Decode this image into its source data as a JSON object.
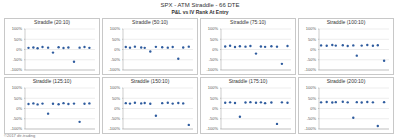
{
  "title": "SPX - ATM Straddle - 66 DTE",
  "subtitle": "P&L vs IV Rank At Entry",
  "footer": "©2017 dtr-trading",
  "chart_data": [
    {
      "type": "scatter",
      "title": "Straddle (20:10)",
      "x": [
        5,
        12,
        18,
        25,
        33,
        40,
        48,
        55,
        62,
        70,
        78,
        85,
        92
      ],
      "values": [
        8,
        10,
        6,
        12,
        9,
        -15,
        11,
        7,
        10,
        -60,
        9,
        12,
        8
      ],
      "xlim": [
        0,
        100
      ],
      "xticks": [
        0,
        25,
        50,
        75,
        100
      ],
      "ylim": [
        -100,
        100
      ],
      "yticks": [
        {
          "value": -100,
          "label": "-100%"
        },
        {
          "value": -50,
          "label": "-50%"
        },
        {
          "value": 0,
          "label": "0%"
        },
        {
          "value": 50,
          "label": "50%"
        },
        {
          "value": 100,
          "label": "100%"
        }
      ],
      "grid": true,
      "color": "#2f5c9e",
      "marker": "circle",
      "tick_labels": "y"
    },
    {
      "type": "scatter",
      "title": "Straddle (50:10)",
      "x": [
        4,
        10,
        17,
        26,
        31,
        39,
        47,
        56,
        64,
        71,
        79,
        86,
        94
      ],
      "values": [
        12,
        9,
        14,
        10,
        8,
        -10,
        13,
        11,
        9,
        12,
        -45,
        10,
        14
      ],
      "xlim": [
        0,
        100
      ],
      "xticks": [
        0,
        25,
        50,
        75,
        100
      ],
      "ylim": [
        -100,
        100
      ],
      "yticks": [
        {
          "value": -100,
          "label": "-100%"
        },
        {
          "value": -50,
          "label": "-50%"
        },
        {
          "value": 0,
          "label": "0%"
        },
        {
          "value": 50,
          "label": "50%"
        },
        {
          "value": 100,
          "label": "100%"
        }
      ],
      "grid": true,
      "color": "#2f5c9e",
      "marker": "circle",
      "tick_labels": "y"
    },
    {
      "type": "scatter",
      "title": "Straddle (75:10)",
      "x": [
        6,
        13,
        20,
        27,
        35,
        42,
        50,
        57,
        63,
        72,
        80,
        87,
        95
      ],
      "values": [
        15,
        18,
        12,
        16,
        14,
        17,
        -20,
        15,
        13,
        16,
        14,
        -70,
        17
      ],
      "xlim": [
        0,
        100
      ],
      "xticks": [
        0,
        25,
        50,
        75,
        100
      ],
      "ylim": [
        -100,
        100
      ],
      "yticks": [
        {
          "value": -100,
          "label": "-100%"
        },
        {
          "value": -50,
          "label": "-50%"
        },
        {
          "value": 0,
          "label": "0%"
        },
        {
          "value": 50,
          "label": "50%"
        },
        {
          "value": 100,
          "label": "100%"
        }
      ],
      "grid": true,
      "color": "#2f5c9e",
      "marker": "circle",
      "tick_labels": "y"
    },
    {
      "type": "scatter",
      "title": "Straddle (100:10)",
      "x": [
        3,
        11,
        19,
        24,
        34,
        41,
        49,
        54,
        61,
        69,
        77,
        84,
        93
      ],
      "values": [
        20,
        18,
        22,
        19,
        21,
        17,
        20,
        -30,
        19,
        22,
        18,
        21,
        -55
      ],
      "xlim": [
        0,
        100
      ],
      "xticks": [
        0,
        25,
        50,
        75,
        100
      ],
      "ylim": [
        -100,
        100
      ],
      "yticks": [
        {
          "value": -100,
          "label": "-100%"
        },
        {
          "value": -50,
          "label": "-50%"
        },
        {
          "value": 0,
          "label": "0%"
        },
        {
          "value": 50,
          "label": "50%"
        },
        {
          "value": 100,
          "label": "100%"
        }
      ],
      "grid": true,
      "color": "#2f5c9e",
      "marker": "circle",
      "tick_labels": "y"
    },
    {
      "type": "scatter",
      "title": "Straddle (125:10)",
      "x": [
        5,
        12,
        18,
        25,
        33,
        40,
        48,
        55,
        62,
        70,
        78,
        85,
        92
      ],
      "values": [
        22,
        25,
        20,
        24,
        -25,
        23,
        21,
        26,
        22,
        24,
        -65,
        23,
        25
      ],
      "xlim": [
        0,
        100
      ],
      "xticks": [
        0,
        25,
        50,
        75,
        100
      ],
      "ylim": [
        -100,
        100
      ],
      "yticks": [
        {
          "value": -100,
          "label": "-100%"
        },
        {
          "value": -50,
          "label": "-50%"
        },
        {
          "value": 0,
          "label": "0%"
        },
        {
          "value": 50,
          "label": "50%"
        },
        {
          "value": 100,
          "label": "100%"
        }
      ],
      "grid": true,
      "color": "#2f5c9e",
      "marker": "circle",
      "tick_labels": "y"
    },
    {
      "type": "scatter",
      "title": "Straddle (150:10)",
      "x": [
        4,
        10,
        17,
        26,
        31,
        39,
        47,
        56,
        64,
        71,
        79,
        86,
        94
      ],
      "values": [
        26,
        24,
        28,
        25,
        27,
        23,
        -35,
        26,
        28,
        24,
        27,
        25,
        -80
      ],
      "xlim": [
        0,
        100
      ],
      "xticks": [
        0,
        25,
        50,
        75,
        100
      ],
      "ylim": [
        -100,
        100
      ],
      "yticks": [
        {
          "value": -100,
          "label": "-100%"
        },
        {
          "value": -50,
          "label": "-50%"
        },
        {
          "value": 0,
          "label": "0%"
        },
        {
          "value": 50,
          "label": "50%"
        },
        {
          "value": 100,
          "label": "100%"
        }
      ],
      "grid": true,
      "color": "#2f5c9e",
      "marker": "circle",
      "tick_labels": "y"
    },
    {
      "type": "scatter",
      "title": "Straddle (175:10)",
      "x": [
        6,
        13,
        20,
        27,
        35,
        42,
        50,
        57,
        63,
        72,
        80,
        87,
        95
      ],
      "values": [
        28,
        30,
        27,
        -40,
        29,
        31,
        28,
        30,
        26,
        29,
        -75,
        30,
        28
      ],
      "xlim": [
        0,
        100
      ],
      "xticks": [
        0,
        25,
        50,
        75,
        100
      ],
      "ylim": [
        -100,
        100
      ],
      "yticks": [
        {
          "value": -100,
          "label": "-100%"
        },
        {
          "value": -50,
          "label": "-50%"
        },
        {
          "value": 0,
          "label": "0%"
        },
        {
          "value": 50,
          "label": "50%"
        },
        {
          "value": 100,
          "label": "100%"
        }
      ],
      "grid": true,
      "color": "#2f5c9e",
      "marker": "circle",
      "tick_labels": "y"
    },
    {
      "type": "scatter",
      "title": "Straddle (200:10)",
      "x": [
        3,
        11,
        19,
        24,
        34,
        41,
        49,
        54,
        61,
        69,
        77,
        84,
        93
      ],
      "values": [
        30,
        32,
        29,
        31,
        33,
        30,
        -45,
        31,
        29,
        32,
        30,
        -85,
        31
      ],
      "xlim": [
        0,
        100
      ],
      "xticks": [
        0,
        25,
        50,
        75,
        100
      ],
      "ylim": [
        -100,
        100
      ],
      "yticks": [
        {
          "value": -100,
          "label": "-100%"
        },
        {
          "value": -50,
          "label": "-50%"
        },
        {
          "value": 0,
          "label": "0%"
        },
        {
          "value": 50,
          "label": "50%"
        },
        {
          "value": 100,
          "label": "100%"
        }
      ],
      "grid": true,
      "color": "#2f5c9e",
      "marker": "circle",
      "tick_labels": "y"
    }
  ]
}
